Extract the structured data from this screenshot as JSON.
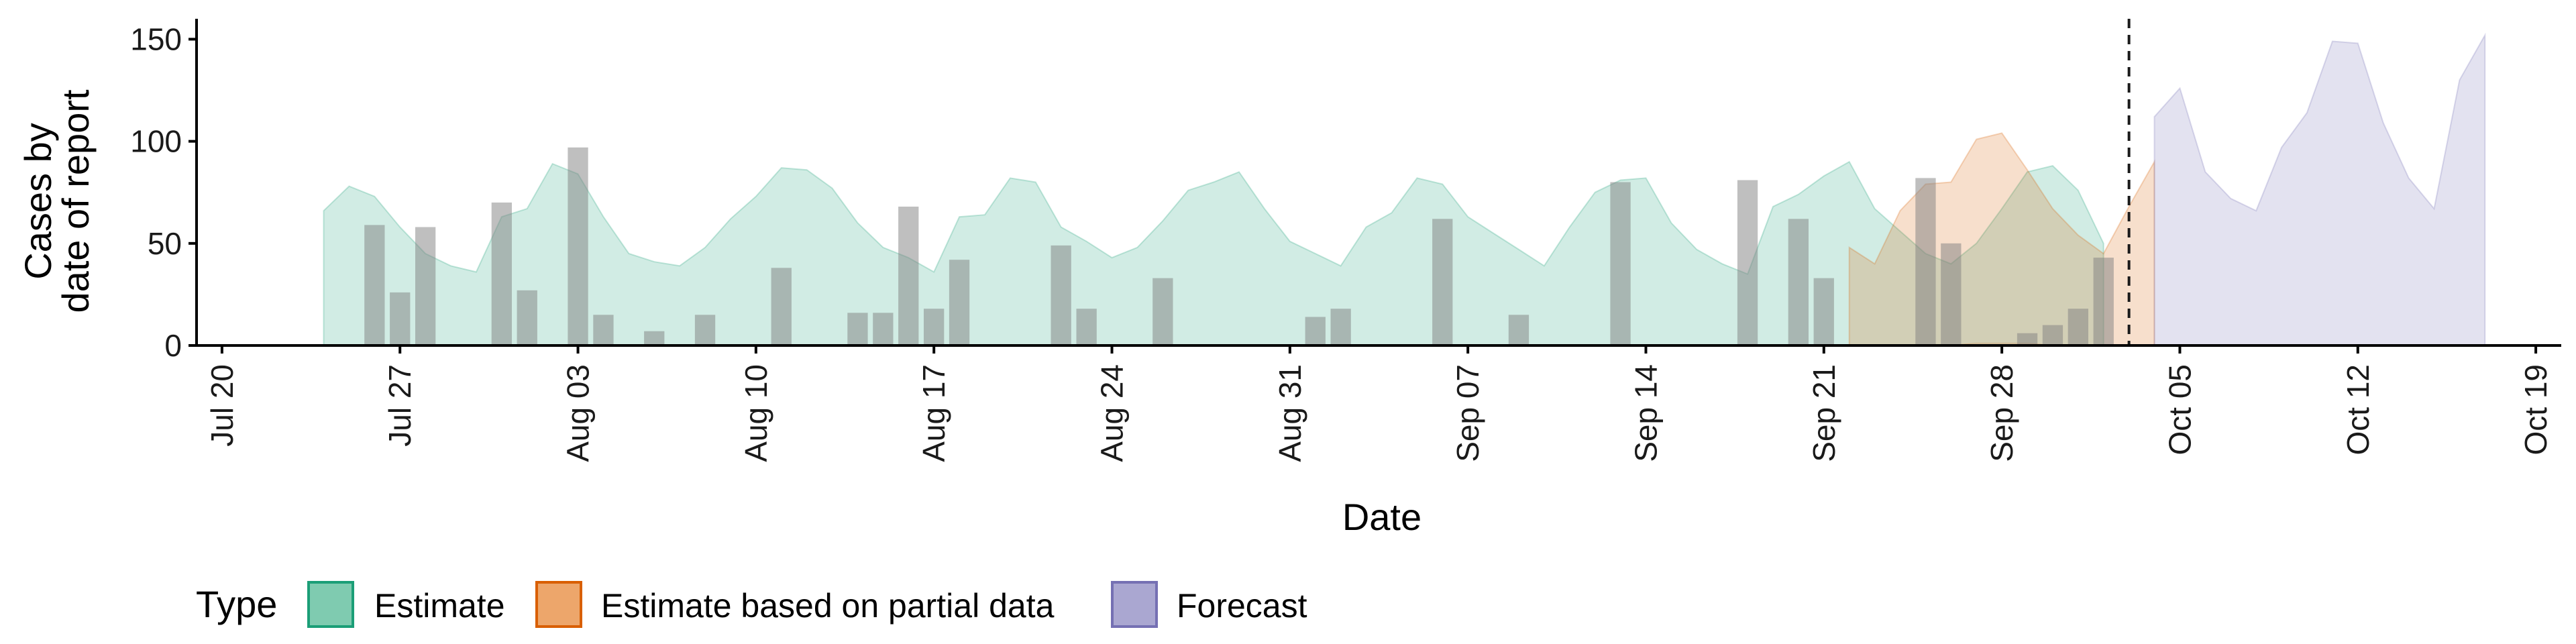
{
  "chart_data": {
    "type": "area",
    "xlabel": "Date",
    "ylabel_lines": [
      "Cases by",
      "date of report"
    ],
    "ylim": [
      0,
      160
    ],
    "y_ticks": [
      0,
      50,
      100,
      150
    ],
    "x_range": [
      "2020-07-19",
      "2020-10-20"
    ],
    "x_ticks": [
      {
        "date": "2020-07-20",
        "label": "Jul 20"
      },
      {
        "date": "2020-07-27",
        "label": "Jul 27"
      },
      {
        "date": "2020-08-03",
        "label": "Aug 03"
      },
      {
        "date": "2020-08-10",
        "label": "Aug 10"
      },
      {
        "date": "2020-08-17",
        "label": "Aug 17"
      },
      {
        "date": "2020-08-24",
        "label": "Aug 24"
      },
      {
        "date": "2020-08-31",
        "label": "Aug 31"
      },
      {
        "date": "2020-09-07",
        "label": "Sep 07"
      },
      {
        "date": "2020-09-14",
        "label": "Sep 14"
      },
      {
        "date": "2020-09-21",
        "label": "Sep 21"
      },
      {
        "date": "2020-09-28",
        "label": "Sep 28"
      },
      {
        "date": "2020-10-05",
        "label": "Oct 05"
      },
      {
        "date": "2020-10-12",
        "label": "Oct 12"
      },
      {
        "date": "2020-10-19",
        "label": "Oct 19"
      }
    ],
    "vline_date": "2020-10-03",
    "grid": false,
    "legend": {
      "title": "Type",
      "position": "bottom",
      "items": [
        {
          "label": "Estimate",
          "fill": "#7fcbb0",
          "stroke": "#1b9e77"
        },
        {
          "label": "Estimate based on partial data",
          "fill": "#eda66b",
          "stroke": "#d95f02"
        },
        {
          "label": "Forecast",
          "fill": "#aaa7d1",
          "stroke": "#7570b3"
        }
      ]
    },
    "area_colors": {
      "Estimate": "#1b9e77",
      "Estimate based on partial data": "#d95f02",
      "Forecast": "#7570b3"
    },
    "bar_color": "#808080",
    "series": [
      {
        "name": "Estimate",
        "start_date": "2020-07-24",
        "upper": [
          66,
          78,
          73,
          58,
          45,
          39,
          36,
          63,
          67,
          89,
          84,
          63,
          45,
          41,
          39,
          48,
          62,
          73,
          87,
          86,
          77,
          60,
          48,
          43,
          36,
          63,
          64,
          82,
          80,
          58,
          51,
          43,
          48,
          61,
          76,
          80,
          85,
          67,
          51,
          45,
          39,
          58,
          65,
          82,
          79,
          63,
          55,
          47,
          39,
          58,
          75,
          81,
          82,
          60,
          47,
          40,
          35,
          68,
          74,
          83,
          90,
          67,
          56,
          45,
          40,
          50,
          67,
          85,
          88,
          76,
          50
        ],
        "lower": [
          0,
          0,
          0,
          0,
          0,
          0,
          0,
          0,
          0,
          0,
          0,
          0,
          0,
          0,
          0,
          0,
          0,
          0,
          0,
          0,
          0,
          0,
          0,
          0,
          0,
          0,
          0,
          0,
          0,
          0,
          0,
          0,
          0,
          0,
          0,
          0,
          0,
          0,
          0,
          0,
          0,
          0,
          0,
          0,
          0,
          0,
          0,
          0,
          0,
          0,
          0,
          0,
          0,
          0,
          0,
          0,
          0,
          0,
          0,
          0,
          0,
          0,
          0,
          0,
          0,
          0,
          0,
          0,
          0,
          0,
          0
        ]
      },
      {
        "name": "Estimate based on partial data",
        "start_date": "2020-09-22",
        "upper": [
          48,
          40,
          66,
          79,
          80,
          101,
          104,
          86,
          67,
          54,
          45,
          68,
          90
        ],
        "lower": [
          0,
          0,
          0,
          0,
          0,
          1,
          1,
          1,
          0,
          0,
          0,
          0,
          0
        ]
      },
      {
        "name": "Forecast",
        "start_date": "2020-10-04",
        "upper": [
          112,
          126,
          85,
          72,
          66,
          97,
          114,
          149,
          148,
          109,
          82,
          67,
          130,
          152
        ],
        "lower": [
          0,
          0,
          0,
          0,
          0,
          0,
          0,
          0,
          0,
          0,
          0,
          0,
          0,
          0
        ]
      }
    ],
    "bars": [
      {
        "date": "2020-07-26",
        "value": 59
      },
      {
        "date": "2020-07-27",
        "value": 26
      },
      {
        "date": "2020-07-28",
        "value": 58
      },
      {
        "date": "2020-07-31",
        "value": 70
      },
      {
        "date": "2020-08-01",
        "value": 27
      },
      {
        "date": "2020-08-03",
        "value": 97
      },
      {
        "date": "2020-08-04",
        "value": 15
      },
      {
        "date": "2020-08-06",
        "value": 7
      },
      {
        "date": "2020-08-08",
        "value": 15
      },
      {
        "date": "2020-08-11",
        "value": 38
      },
      {
        "date": "2020-08-14",
        "value": 16
      },
      {
        "date": "2020-08-15",
        "value": 16
      },
      {
        "date": "2020-08-16",
        "value": 68
      },
      {
        "date": "2020-08-17",
        "value": 18
      },
      {
        "date": "2020-08-18",
        "value": 42
      },
      {
        "date": "2020-08-22",
        "value": 49
      },
      {
        "date": "2020-08-23",
        "value": 18
      },
      {
        "date": "2020-08-26",
        "value": 33
      },
      {
        "date": "2020-09-01",
        "value": 14
      },
      {
        "date": "2020-09-02",
        "value": 18
      },
      {
        "date": "2020-09-06",
        "value": 62
      },
      {
        "date": "2020-09-09",
        "value": 15
      },
      {
        "date": "2020-09-13",
        "value": 80
      },
      {
        "date": "2020-09-18",
        "value": 81
      },
      {
        "date": "2020-09-20",
        "value": 62
      },
      {
        "date": "2020-09-21",
        "value": 33
      },
      {
        "date": "2020-09-25",
        "value": 82
      },
      {
        "date": "2020-09-26",
        "value": 50
      },
      {
        "date": "2020-09-29",
        "value": 6
      },
      {
        "date": "2020-09-30",
        "value": 10
      },
      {
        "date": "2020-10-01",
        "value": 18
      },
      {
        "date": "2020-10-02",
        "value": 43
      }
    ]
  }
}
